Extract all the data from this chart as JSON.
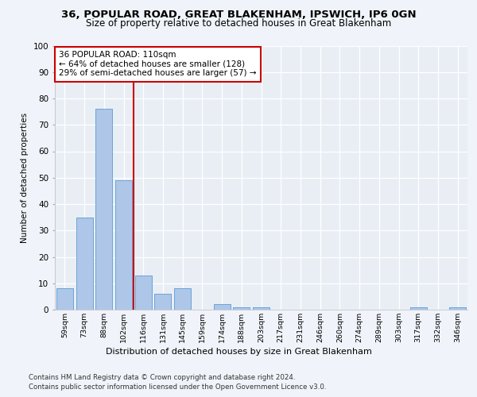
{
  "title1": "36, POPULAR ROAD, GREAT BLAKENHAM, IPSWICH, IP6 0GN",
  "title2": "Size of property relative to detached houses in Great Blakenham",
  "xlabel": "Distribution of detached houses by size in Great Blakenham",
  "ylabel": "Number of detached properties",
  "categories": [
    "59sqm",
    "73sqm",
    "88sqm",
    "102sqm",
    "116sqm",
    "131sqm",
    "145sqm",
    "159sqm",
    "174sqm",
    "188sqm",
    "203sqm",
    "217sqm",
    "231sqm",
    "246sqm",
    "260sqm",
    "274sqm",
    "289sqm",
    "303sqm",
    "317sqm",
    "332sqm",
    "346sqm"
  ],
  "values": [
    8,
    35,
    76,
    49,
    13,
    6,
    8,
    0,
    2,
    1,
    1,
    0,
    0,
    0,
    0,
    0,
    0,
    0,
    1,
    0,
    1
  ],
  "bar_color": "#aec6e8",
  "bar_edge_color": "#5b9bd5",
  "vline_x": 3.5,
  "vline_color": "#cc0000",
  "annotation_text": "36 POPULAR ROAD: 110sqm\n← 64% of detached houses are smaller (128)\n29% of semi-detached houses are larger (57) →",
  "annotation_box_color": "#ffffff",
  "annotation_box_edge_color": "#cc0000",
  "ylim": [
    0,
    100
  ],
  "yticks": [
    0,
    10,
    20,
    30,
    40,
    50,
    60,
    70,
    80,
    90,
    100
  ],
  "footer1": "Contains HM Land Registry data © Crown copyright and database right 2024.",
  "footer2": "Contains public sector information licensed under the Open Government Licence v3.0.",
  "fig_bg_color": "#f0f4fa",
  "plot_bg_color": "#e8eef4"
}
